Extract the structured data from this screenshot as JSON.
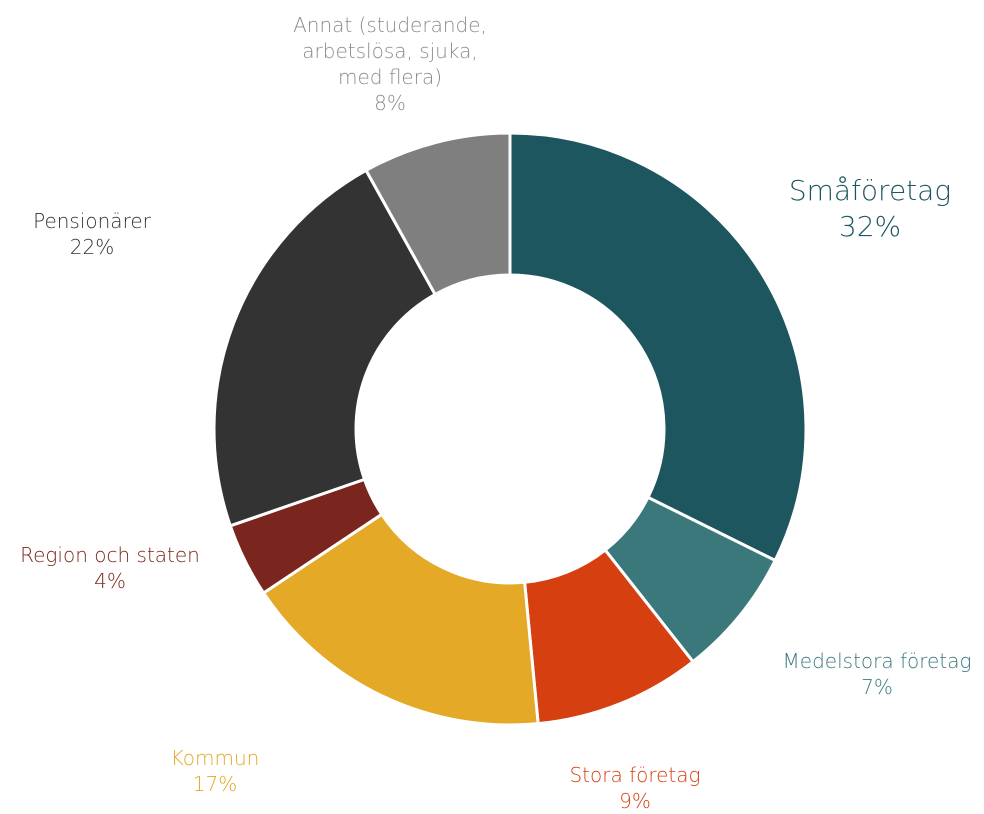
{
  "chart_data": {
    "type": "pie",
    "donut": true,
    "slices": [
      {
        "label": "Småföretag",
        "value": 32,
        "value_label": "32%",
        "color": "#1e5660"
      },
      {
        "label": "Medelstora företag",
        "value": 7,
        "value_label": "7%",
        "color": "#3a787c"
      },
      {
        "label": "Stora företag",
        "value": 9,
        "value_label": "9%",
        "color": "#d63f10"
      },
      {
        "label": "Kommun",
        "value": 17,
        "value_label": "17%",
        "color": "#e3a927"
      },
      {
        "label": "Region och staten",
        "value": 4,
        "value_label": "4%",
        "color": "#7a261e"
      },
      {
        "label": "Pensionärer",
        "value": 22,
        "value_label": "22%",
        "color": "#333333"
      },
      {
        "label": "Annat (studerande, arbetslösa, sjuka, med flera)",
        "label_lines": [
          "Annat (studerande,",
          "arbetslösa, sjuka,",
          "med flera)"
        ],
        "value": 8,
        "value_label": "8%",
        "color": "#7f7f7f"
      }
    ]
  }
}
